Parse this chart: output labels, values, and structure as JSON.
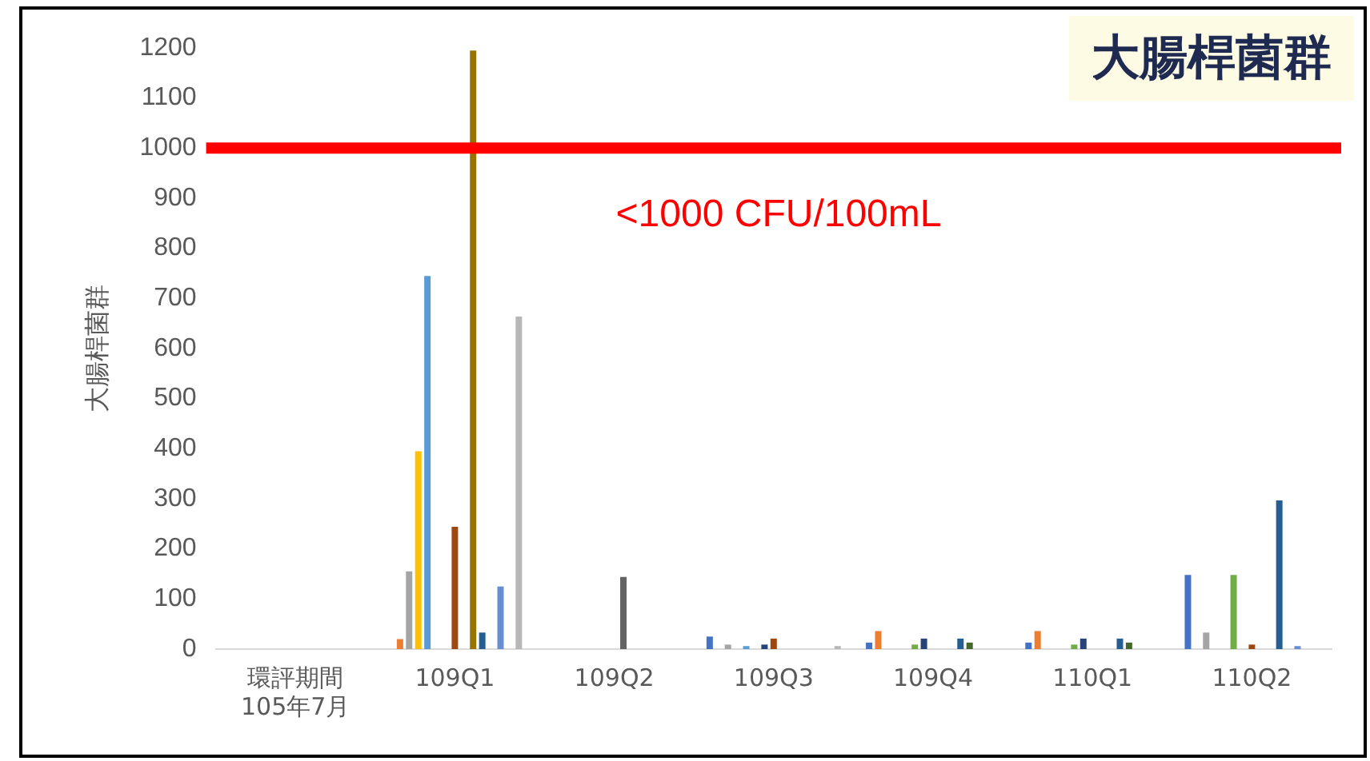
{
  "chart_data": {
    "type": "bar",
    "title": "大腸桿菌群",
    "ylabel": "大腸桿菌群",
    "categories": [
      "環評期間\n105年7月",
      "109Q1",
      "109Q2",
      "109Q3",
      "109Q4",
      "110Q1",
      "110Q2"
    ],
    "series": [
      {
        "color": "#4472c4",
        "values": [
          null,
          null,
          null,
          25,
          13,
          13,
          148
        ]
      },
      {
        "color": "#ed7d31",
        "values": [
          null,
          20,
          null,
          null,
          36,
          36,
          null
        ]
      },
      {
        "color": "#a5a5a5",
        "values": [
          null,
          155,
          null,
          9,
          null,
          null,
          33
        ]
      },
      {
        "color": "#ffc000",
        "values": [
          null,
          395,
          null,
          null,
          null,
          null,
          null
        ]
      },
      {
        "color": "#5b9bd5",
        "values": [
          null,
          745,
          null,
          6,
          null,
          null,
          null
        ]
      },
      {
        "color": "#70ad47",
        "values": [
          null,
          null,
          null,
          null,
          9,
          9,
          148
        ]
      },
      {
        "color": "#264478",
        "values": [
          null,
          null,
          null,
          9,
          21,
          21,
          null
        ]
      },
      {
        "color": "#9e480e",
        "values": [
          null,
          244,
          null,
          21,
          null,
          null,
          9
        ]
      },
      {
        "color": "#636363",
        "values": [
          null,
          null,
          144,
          null,
          null,
          null,
          null
        ]
      },
      {
        "color": "#997300",
        "values": [
          null,
          1195,
          null,
          null,
          null,
          null,
          null
        ]
      },
      {
        "color": "#255e91",
        "values": [
          null,
          33,
          null,
          null,
          21,
          21,
          297
        ]
      },
      {
        "color": "#43682b",
        "values": [
          null,
          null,
          null,
          null,
          13,
          13,
          null
        ]
      },
      {
        "color": "#698ed0",
        "values": [
          null,
          125,
          null,
          null,
          null,
          null,
          6
        ]
      },
      {
        "color": "#f1975a",
        "values": [
          null,
          null,
          null,
          null,
          null,
          null,
          null
        ]
      },
      {
        "color": "#b7b7b7",
        "values": [
          null,
          664,
          null,
          6,
          null,
          null,
          null
        ]
      }
    ],
    "ylim": [
      0,
      1200
    ],
    "yticks": [
      0,
      100,
      200,
      300,
      400,
      500,
      600,
      700,
      800,
      900,
      1000,
      1100,
      1200
    ],
    "ref_lines": [
      {
        "axis": "y",
        "value": 1000,
        "label": "<1000 CFU/100mL",
        "color": "#ff0000"
      }
    ],
    "grid": false,
    "legend": false
  }
}
